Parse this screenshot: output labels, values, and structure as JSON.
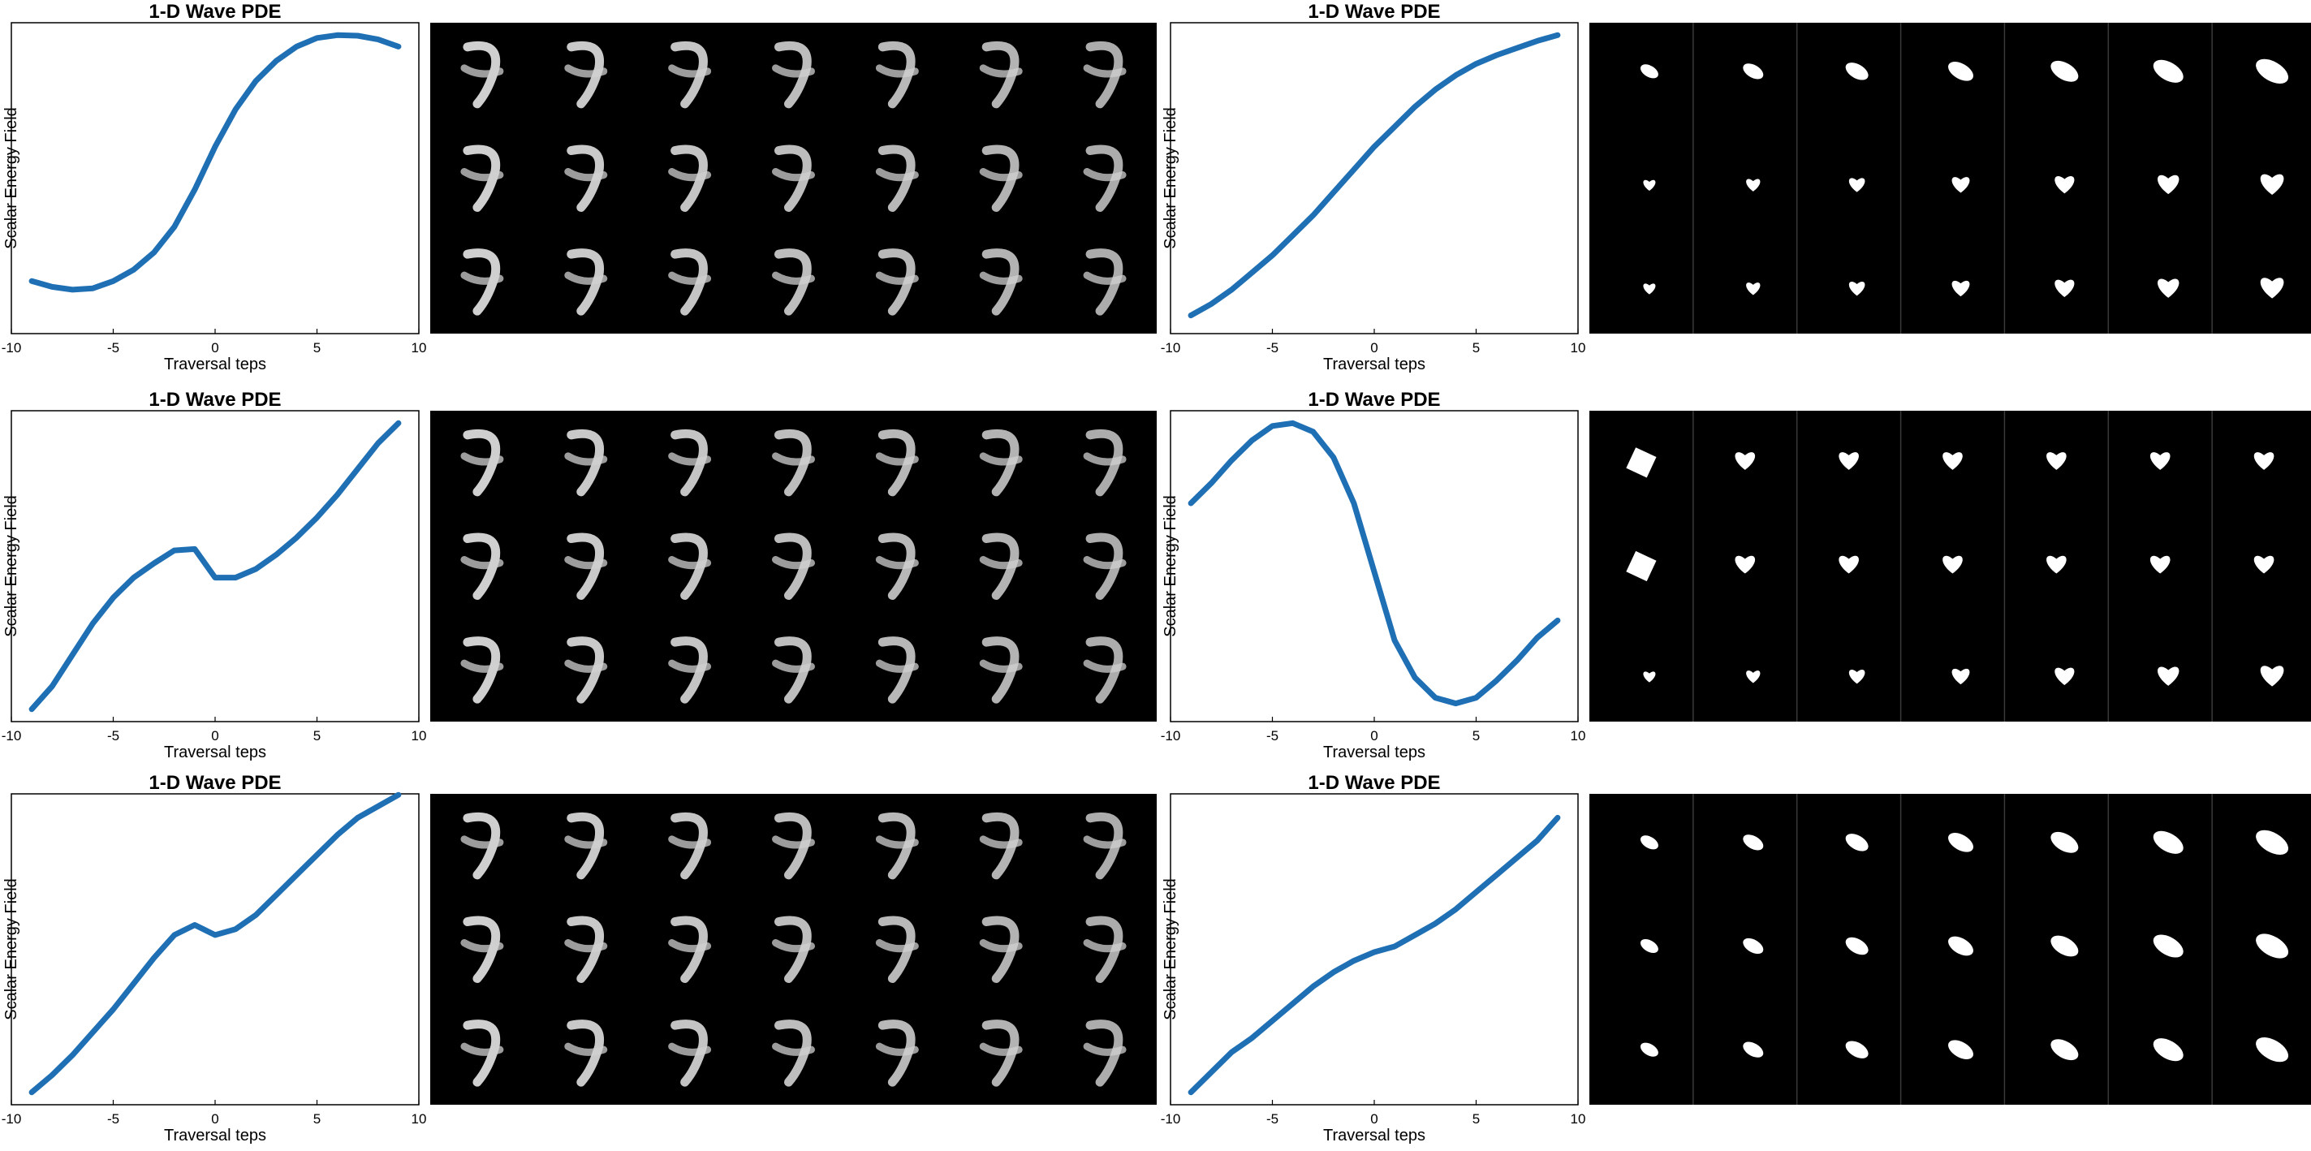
{
  "colors": {
    "curve": "#1f6fb4",
    "background": "#ffffff",
    "panel": "#000000",
    "divider": "#3a3a3a"
  },
  "shared": {
    "title": "1-D Wave PDE",
    "xlabel": "Traversal teps",
    "ylabel": "Scalar Energy Field",
    "xticks": [
      "-10",
      "-5",
      "0",
      "5",
      "10"
    ]
  },
  "chart_data": [
    {
      "type": "line",
      "title": "1-D Wave PDE",
      "xlabel": "Traversal teps",
      "ylabel": "Scalar Energy Field",
      "xlim": [
        -10,
        10
      ],
      "ylim": [
        0,
        1
      ],
      "x": [
        -9,
        -8,
        -7,
        -6,
        -5,
        -4,
        -3,
        -2,
        -1,
        0,
        1,
        2,
        3,
        4,
        5,
        6,
        7,
        8,
        9
      ],
      "series": [
        {
          "values": [
            0.14,
            0.12,
            0.11,
            0.115,
            0.14,
            0.18,
            0.24,
            0.33,
            0.46,
            0.61,
            0.74,
            0.84,
            0.91,
            0.96,
            0.99,
            1.0,
            0.998,
            0.985,
            0.96
          ]
        }
      ],
      "panel": {
        "columns": 7,
        "columns_separated": false,
        "rows": [
          {
            "label": "digit 9 to 3",
            "shape": "digit"
          },
          {
            "label": "digit 4 to 7",
            "shape": "digit"
          },
          {
            "label": "digit 4",
            "shape": "digit"
          }
        ]
      }
    },
    {
      "type": "line",
      "title": "1-D Wave PDE",
      "xlabel": "Traversal teps",
      "ylabel": "Scalar Energy Field",
      "xlim": [
        -10,
        10
      ],
      "ylim": [
        0,
        1
      ],
      "x": [
        -9,
        -8,
        -7,
        -6,
        -5,
        -4,
        -3,
        -2,
        -1,
        0,
        1,
        2,
        3,
        4,
        5,
        6,
        7,
        8,
        9
      ],
      "series": [
        {
          "values": [
            0.02,
            0.06,
            0.11,
            0.17,
            0.23,
            0.3,
            0.37,
            0.45,
            0.53,
            0.61,
            0.68,
            0.75,
            0.81,
            0.86,
            0.9,
            0.93,
            0.955,
            0.98,
            1.0
          ]
        }
      ],
      "panel": {
        "columns": 7,
        "columns_separated": true,
        "rows": [
          {
            "label": "small ellipse growing",
            "shape": "ellipse"
          },
          {
            "label": "small heart",
            "shape": "heart"
          },
          {
            "label": "heart",
            "shape": "heart"
          }
        ]
      }
    },
    {
      "type": "line",
      "title": "1-D Wave PDE",
      "xlabel": "Traversal teps",
      "ylabel": "Scalar Energy Field",
      "xlim": [
        -10,
        10
      ],
      "ylim": [
        0,
        1
      ],
      "x": [
        -9,
        -8,
        -7,
        -6,
        -5,
        -4,
        -3,
        -2,
        -1,
        0,
        1,
        2,
        3,
        4,
        5,
        6,
        7,
        8,
        9
      ],
      "series": [
        {
          "values": [
            0.0,
            0.08,
            0.19,
            0.3,
            0.39,
            0.46,
            0.51,
            0.555,
            0.56,
            0.46,
            0.46,
            0.49,
            0.54,
            0.6,
            0.67,
            0.75,
            0.84,
            0.93,
            1.0
          ]
        }
      ],
      "panel": {
        "columns": 7,
        "columns_separated": false,
        "rows": [
          {
            "label": "digit 7 to 4",
            "shape": "digit"
          },
          {
            "label": "digit 7 to 9",
            "shape": "digit"
          },
          {
            "label": "digit 7",
            "shape": "digit"
          }
        ]
      }
    },
    {
      "type": "line",
      "title": "1-D Wave PDE",
      "xlabel": "Traversal teps",
      "ylabel": "Scalar Energy Field",
      "xlim": [
        -10,
        10
      ],
      "ylim": [
        0,
        1
      ],
      "x": [
        -9,
        -8,
        -7,
        -6,
        -5,
        -4,
        -3,
        -2,
        -1,
        0,
        1,
        2,
        3,
        4,
        5,
        6,
        7,
        8,
        9
      ],
      "series": [
        {
          "values": [
            0.72,
            0.79,
            0.87,
            0.94,
            0.99,
            1.0,
            0.97,
            0.88,
            0.72,
            0.48,
            0.24,
            0.11,
            0.04,
            0.02,
            0.04,
            0.1,
            0.17,
            0.25,
            0.31
          ]
        }
      ],
      "panel": {
        "columns": 7,
        "columns_separated": true,
        "rows": [
          {
            "label": "square to heart",
            "shape": "mixed"
          },
          {
            "label": "square to heart small",
            "shape": "mixed"
          },
          {
            "label": "heart",
            "shape": "heart"
          }
        ]
      }
    },
    {
      "type": "line",
      "title": "1-D Wave PDE",
      "xlabel": "Traversal teps",
      "ylabel": "Scalar Energy Field",
      "xlim": [
        -10,
        10
      ],
      "ylim": [
        0,
        1
      ],
      "x": [
        -9,
        -8,
        -7,
        -6,
        -5,
        -4,
        -3,
        -2,
        -1,
        0,
        1,
        2,
        3,
        4,
        5,
        6,
        7,
        8,
        9
      ],
      "series": [
        {
          "values": [
            0.0,
            0.06,
            0.13,
            0.21,
            0.29,
            0.38,
            0.47,
            0.55,
            0.585,
            0.55,
            0.57,
            0.62,
            0.69,
            0.76,
            0.83,
            0.9,
            0.96,
            1.0,
            1.04
          ]
        }
      ],
      "panel": {
        "columns": 7,
        "columns_separated": false,
        "rows": [
          {
            "label": "digit 3 to 6",
            "shape": "digit"
          },
          {
            "label": "digit 4 to 9",
            "shape": "digit"
          },
          {
            "label": "digit 7 to 9",
            "shape": "digit"
          }
        ]
      }
    },
    {
      "type": "line",
      "title": "1-D Wave PDE",
      "xlabel": "Traversal teps",
      "ylabel": "Scalar Energy Field",
      "xlim": [
        -10,
        10
      ],
      "ylim": [
        0,
        1
      ],
      "x": [
        -9,
        -8,
        -7,
        -6,
        -5,
        -4,
        -3,
        -2,
        -1,
        0,
        1,
        2,
        3,
        4,
        5,
        6,
        7,
        8,
        9
      ],
      "series": [
        {
          "values": [
            0.0,
            0.07,
            0.14,
            0.19,
            0.25,
            0.31,
            0.37,
            0.42,
            0.46,
            0.49,
            0.51,
            0.55,
            0.59,
            0.64,
            0.7,
            0.76,
            0.82,
            0.88,
            0.96
          ]
        }
      ],
      "panel": {
        "columns": 7,
        "columns_separated": true,
        "rows": [
          {
            "label": "ellipse",
            "shape": "ellipse"
          },
          {
            "label": "small ellipse",
            "shape": "ellipse"
          },
          {
            "label": "ellipse flat",
            "shape": "ellipse"
          }
        ]
      }
    }
  ]
}
